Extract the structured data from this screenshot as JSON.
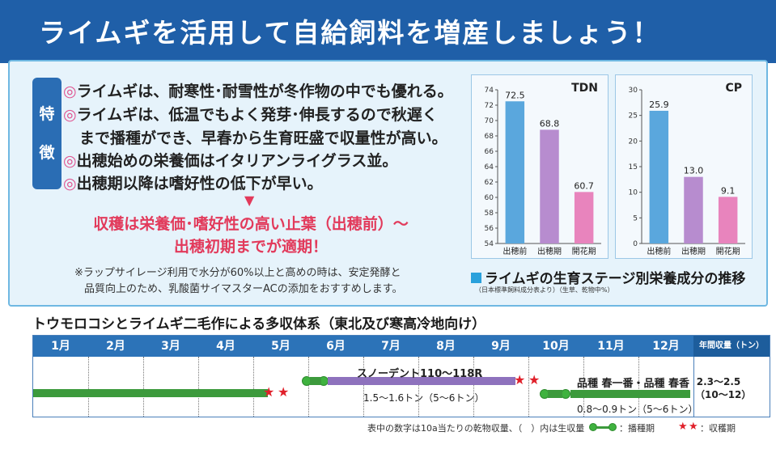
{
  "header": {
    "title": "ライムギを活用して自給飼料を増産しましょう！"
  },
  "features": {
    "tag": [
      "特",
      "徴"
    ],
    "bullet_mark": "◎",
    "items": [
      "ライムギは、耐寒性･耐雪性が冬作物の中でも優れる。",
      "ライムギは、低温でもよく発芽･伸長するので秋遅く",
      "まで播種ができ、早春から生育旺盛で収量性が高い。",
      "出穂始めの栄養価はイタリアンライグラス並。",
      "出穂期以降は嗜好性の低下が早い。"
    ],
    "arrow": "▼",
    "conclusion": [
      "収穫は栄養価･嗜好性の高い止葉（出穂前）～",
      "出穂初期までが適期！"
    ],
    "note": [
      "※ラップサイレージ利用で水分が60%以上と高めの時は、安定発酵と",
      "品質向上のため、乳酸菌サイマスターACの添加をおすすめします。"
    ]
  },
  "chart_data": [
    {
      "type": "bar",
      "title": "TDN",
      "categories": [
        "出穂前",
        "出穂期",
        "開花期"
      ],
      "values": [
        72.5,
        68.8,
        60.7
      ],
      "ylim": [
        54,
        74
      ],
      "yticks": [
        54,
        56,
        58,
        60,
        62,
        64,
        66,
        68,
        70,
        72,
        74
      ],
      "colors": [
        "#5aa7dd",
        "#b78ccf",
        "#e884bd"
      ]
    },
    {
      "type": "bar",
      "title": "CP",
      "categories": [
        "出穂前",
        "出穂期",
        "開花期"
      ],
      "values": [
        25.9,
        13.0,
        9.1
      ],
      "value_labels": [
        "25.9",
        "13.0",
        "9.1"
      ],
      "ylim": [
        0,
        30
      ],
      "yticks": [
        0,
        5,
        10,
        15,
        20,
        25,
        30
      ],
      "colors": [
        "#5aa7dd",
        "#b78ccf",
        "#e884bd"
      ]
    }
  ],
  "chart_caption": {
    "title": "ライムギの生育ステージ別栄養成分の推移",
    "source": "（日本標準飼料成分表より）（生草、乾物中%）"
  },
  "timeline": {
    "title": "トウモロコシとライムギ二毛作による多収体系（東北及び寒高冷地向け）",
    "months": [
      "1月",
      "2月",
      "3月",
      "4月",
      "5月",
      "6月",
      "7月",
      "8月",
      "9月",
      "10月",
      "11月",
      "12月"
    ],
    "annual_header": "年間収量（トン）",
    "corn_label": "スノーデント110～118R",
    "corn_yield": "1.5～1.6トン（5～6トン）",
    "rye_label": "品種 春一番・品種 春香",
    "rye_yield": "0.8～0.9トン（5～6トン）",
    "annual_value": "2.3～2.5",
    "annual_value2": "（10～12）"
  },
  "footer": {
    "note": "表中の数字は10a当たりの乾物収量、（　）内は生収量",
    "sow_label": "：播種期",
    "harvest_label": "：収穫期"
  }
}
